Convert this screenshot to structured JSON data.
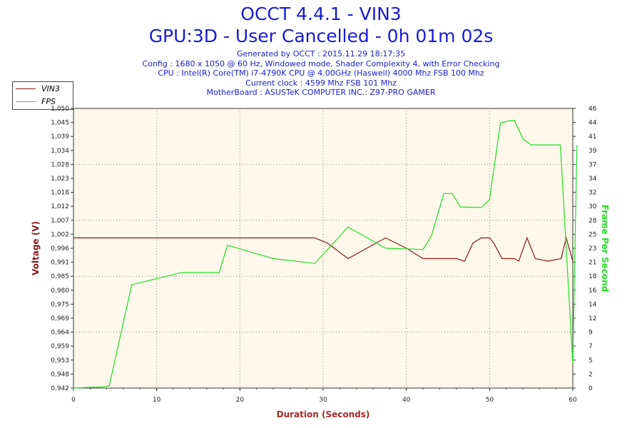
{
  "header": {
    "title": "OCCT 4.4.1 - VIN3",
    "subtitle": "GPU:3D - User Cancelled - 0h 01m 02s",
    "info_lines": [
      "Generated by OCCT : 2015.11.29 18:17:35",
      "Config : 1680 x 1050 @ 60 Hz, Windowed mode, Shader Complexity 4, with Error Checking",
      "CPU : Intel(R) Core(TM) i7-4790K CPU @ 4.00GHz (Haswell) 4000 Mhz FSB 100 Mhz",
      "Current clock : 4599 Mhz FSB 101 Mhz",
      "MotherBoard : ASUSTeK COMPUTER INC.: Z97-PRO GAMER"
    ]
  },
  "colors": {
    "title": "#1a1ad6",
    "plot_bg": "#fdf8ea",
    "vin3": "#8b1a1a",
    "fps": "#22dd22",
    "axis_x_label": "#a52a2a",
    "grid": "#888888"
  },
  "chart_data": {
    "type": "line",
    "title": "OCCT 4.4.1 - VIN3",
    "xlabel": "Duration (Seconds)",
    "ylabel": "Voltage (V)",
    "y2label": "Frame Per Second",
    "xlim": [
      0,
      60
    ],
    "ylim": [
      0.942,
      1.05
    ],
    "y2lim": [
      0,
      46
    ],
    "x_ticks": [
      0,
      10,
      20,
      30,
      40,
      50,
      60
    ],
    "y_tick_labels": [
      "0,942",
      "0,948",
      "0,953",
      "0,959",
      "0,964",
      "0,969",
      "0,975",
      "0,980",
      "0,985",
      "0,991",
      "0,996",
      "1,002",
      "1,007",
      "1,012",
      "1,018",
      "1,023",
      "1,028",
      "1,034",
      "1,039",
      "1,045",
      "1,050"
    ],
    "y2_ticks": [
      0,
      2,
      5,
      7,
      9,
      12,
      14,
      16,
      18,
      21,
      23,
      25,
      28,
      30,
      32,
      34,
      37,
      39,
      41,
      44,
      46
    ],
    "grid": true,
    "legend_position": "top-left",
    "series": [
      {
        "name": "VIN3",
        "axis": "left",
        "points": [
          [
            0,
            1.0
          ],
          [
            3,
            1.0
          ],
          [
            29,
            1.0
          ],
          [
            30.5,
            0.998
          ],
          [
            33,
            0.992
          ],
          [
            37.5,
            1.0
          ],
          [
            40,
            0.996
          ],
          [
            42,
            0.992
          ],
          [
            46,
            0.992
          ],
          [
            47,
            0.991
          ],
          [
            48,
            0.998
          ],
          [
            49,
            1.0
          ],
          [
            50,
            1.0
          ],
          [
            50.5,
            0.998
          ],
          [
            51.5,
            0.992
          ],
          [
            53,
            0.992
          ],
          [
            53.5,
            0.991
          ],
          [
            54.5,
            1.0
          ],
          [
            55.5,
            0.992
          ],
          [
            57,
            0.991
          ],
          [
            58.6,
            0.992
          ],
          [
            59.2,
            1.0
          ],
          [
            60,
            0.991
          ]
        ]
      },
      {
        "name": "FPS",
        "axis": "right",
        "points": [
          [
            0,
            0
          ],
          [
            3.5,
            0.2
          ],
          [
            4.3,
            0.4
          ],
          [
            7,
            17
          ],
          [
            10,
            18
          ],
          [
            13,
            19
          ],
          [
            14,
            19
          ],
          [
            17.5,
            19
          ],
          [
            18.5,
            23.5
          ],
          [
            24,
            21.3
          ],
          [
            29,
            20.5
          ],
          [
            33,
            26.5
          ],
          [
            37.5,
            23
          ],
          [
            42,
            22.8
          ],
          [
            43,
            25
          ],
          [
            44.5,
            32
          ],
          [
            45.5,
            32
          ],
          [
            46.5,
            29.8
          ],
          [
            49,
            29.7
          ],
          [
            50,
            31
          ],
          [
            51.3,
            43.6
          ],
          [
            52.5,
            44
          ],
          [
            53,
            44
          ],
          [
            54,
            41
          ],
          [
            55,
            40
          ],
          [
            58.5,
            40
          ],
          [
            60,
            4
          ],
          [
            60.5,
            40
          ]
        ]
      }
    ]
  }
}
